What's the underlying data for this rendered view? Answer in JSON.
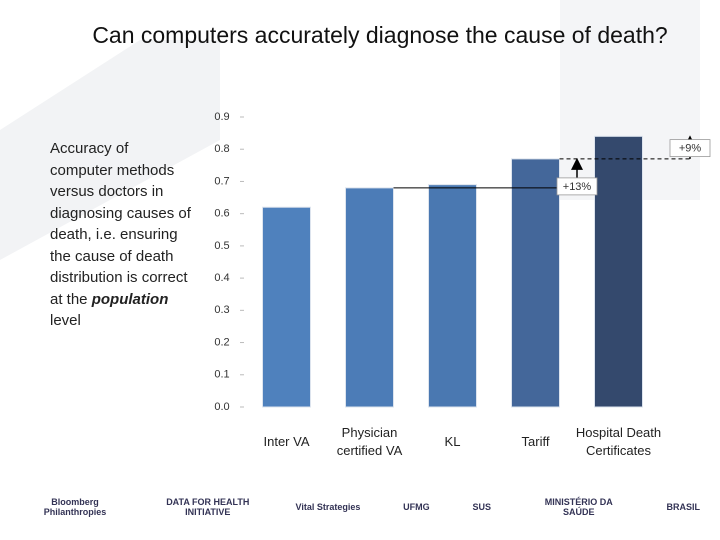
{
  "title": "Can computers accurately diagnose the  cause of death?",
  "side_text": {
    "text": "Accuracy of computer methods versus doctors in diagnosing causes of death, i.e. ensuring the cause of death distribution is correct at the",
    "emphasis": "population",
    "tail": "level"
  },
  "chart_data": {
    "type": "bar",
    "categories": [
      "Inter VA",
      "Physician certified VA",
      "KL",
      "Tariff",
      "Hospital Death Certificates"
    ],
    "values": [
      0.62,
      0.68,
      0.69,
      0.77,
      0.84
    ],
    "colors": [
      "#4f81bd",
      "#4c7cb7",
      "#4a78b1",
      "#44679a",
      "#34496d"
    ],
    "ylim": [
      0,
      0.9
    ],
    "yticks": [
      {
        "value": 0,
        "label": "0.0"
      },
      0.1,
      0.2,
      0.3,
      0.4,
      0.5,
      0.6,
      0.7,
      0.8,
      0.9
    ],
    "annotations": [
      {
        "text": "+13%"
      },
      {
        "text": "+9%"
      }
    ]
  },
  "logos": [
    "Bloomberg Philanthropies",
    "DATA FOR HEALTH INITIATIVE",
    "Vital Strategies",
    "UFMG",
    "SUS",
    "MINISTÉRIO DA SAÚDE",
    "BRASIL"
  ]
}
